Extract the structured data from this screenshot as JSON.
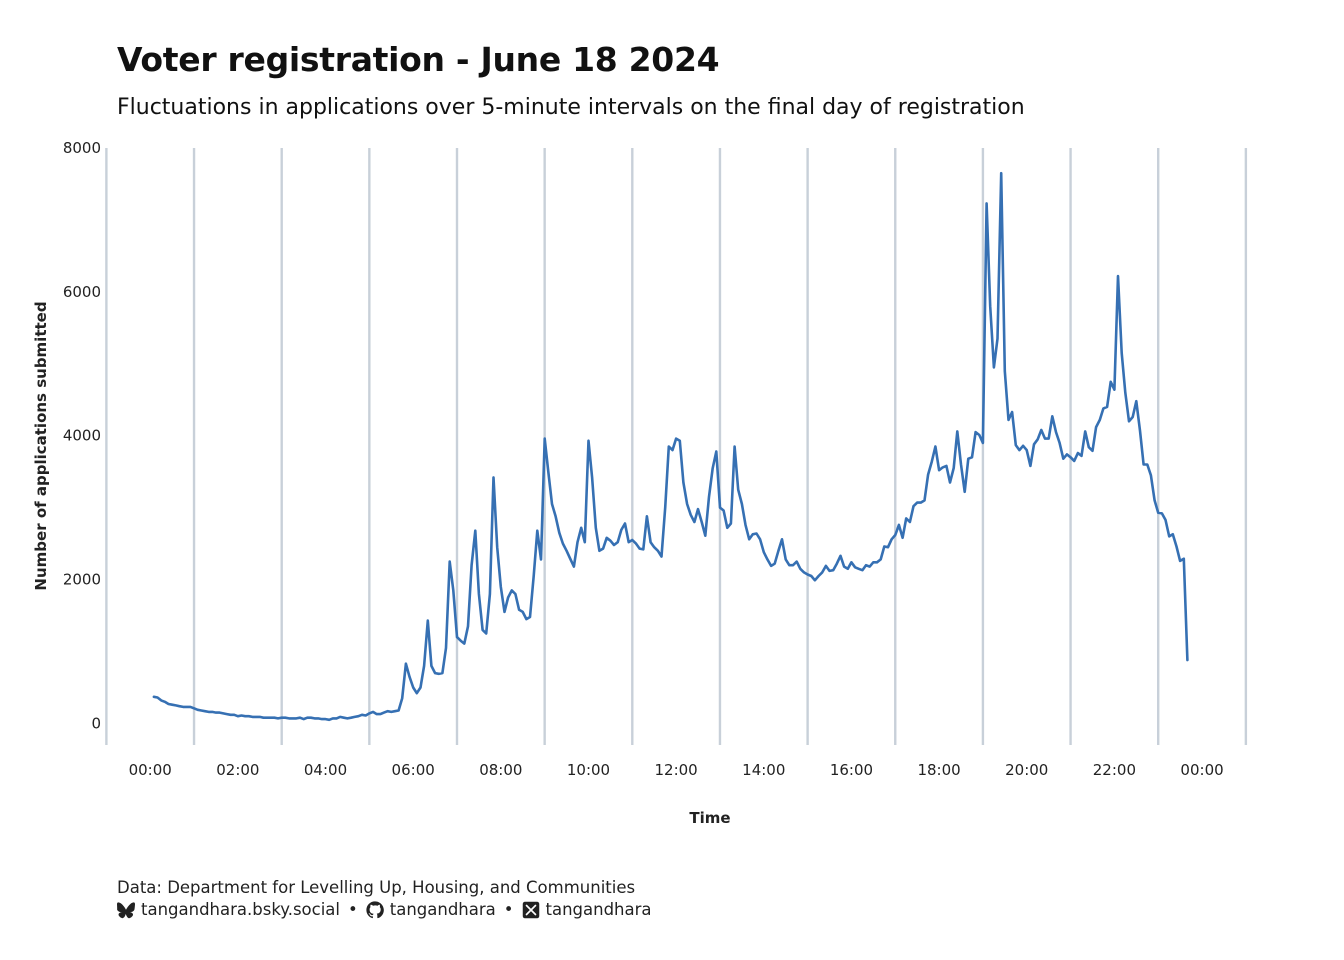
{
  "title": "Voter registration - June 18 2024",
  "subtitle": "Fluctuations in applications over 5-minute intervals on the final day of registration",
  "caption": {
    "source": "Data: Department for Levelling Up, Housing, and Communities",
    "bluesky": "tangandhara.bsky.social",
    "github": "tangandhara",
    "x": "tangandhara",
    "separator": "•"
  },
  "icons": [
    "bluesky-icon",
    "github-icon",
    "x-icon"
  ],
  "colors": {
    "line": "#3670b3",
    "gridline": "#c8d0d9"
  },
  "chart_data": {
    "type": "line",
    "xlabel": "Time",
    "ylabel": "Number of applications submitted",
    "x_unit": "minutes since 00:00 (value at 1440 = 00:00 next day)",
    "xlim": [
      -40,
      1570
    ],
    "ylim": [
      -300,
      8000
    ],
    "yticks": [
      0,
      2000,
      4000,
      6000,
      8000
    ],
    "xticks": [
      "00:00",
      "02:00",
      "04:00",
      "06:00",
      "08:00",
      "10:00",
      "12:00",
      "14:00",
      "16:00",
      "18:00",
      "20:00",
      "22:00",
      "00:00"
    ],
    "grid": "vertical lines every 2 hours at odd hours",
    "series": [
      {
        "values": [
          [
            5,
            370
          ],
          [
            10,
            360
          ],
          [
            15,
            320
          ],
          [
            20,
            300
          ],
          [
            25,
            270
          ],
          [
            30,
            260
          ],
          [
            35,
            250
          ],
          [
            40,
            240
          ],
          [
            45,
            230
          ],
          [
            50,
            230
          ],
          [
            55,
            230
          ],
          [
            60,
            210
          ],
          [
            65,
            190
          ],
          [
            70,
            180
          ],
          [
            75,
            170
          ],
          [
            80,
            160
          ],
          [
            85,
            160
          ],
          [
            90,
            150
          ],
          [
            95,
            150
          ],
          [
            100,
            140
          ],
          [
            105,
            130
          ],
          [
            110,
            120
          ],
          [
            115,
            120
          ],
          [
            120,
            100
          ],
          [
            125,
            110
          ],
          [
            130,
            100
          ],
          [
            135,
            100
          ],
          [
            140,
            90
          ],
          [
            145,
            90
          ],
          [
            150,
            90
          ],
          [
            155,
            80
          ],
          [
            160,
            80
          ],
          [
            165,
            80
          ],
          [
            170,
            80
          ],
          [
            175,
            70
          ],
          [
            180,
            80
          ],
          [
            185,
            80
          ],
          [
            190,
            70
          ],
          [
            195,
            70
          ],
          [
            200,
            70
          ],
          [
            205,
            80
          ],
          [
            210,
            60
          ],
          [
            215,
            80
          ],
          [
            220,
            80
          ],
          [
            225,
            70
          ],
          [
            230,
            70
          ],
          [
            235,
            60
          ],
          [
            240,
            60
          ],
          [
            245,
            50
          ],
          [
            250,
            70
          ],
          [
            255,
            70
          ],
          [
            260,
            90
          ],
          [
            265,
            80
          ],
          [
            270,
            70
          ],
          [
            275,
            80
          ],
          [
            280,
            90
          ],
          [
            285,
            100
          ],
          [
            290,
            120
          ],
          [
            295,
            110
          ],
          [
            300,
            140
          ],
          [
            305,
            160
          ],
          [
            310,
            130
          ],
          [
            315,
            130
          ],
          [
            320,
            150
          ],
          [
            325,
            170
          ],
          [
            330,
            160
          ],
          [
            335,
            170
          ],
          [
            340,
            180
          ],
          [
            345,
            350
          ],
          [
            350,
            830
          ],
          [
            355,
            650
          ],
          [
            360,
            500
          ],
          [
            365,
            420
          ],
          [
            370,
            500
          ],
          [
            375,
            800
          ],
          [
            380,
            1430
          ],
          [
            385,
            800
          ],
          [
            390,
            700
          ],
          [
            395,
            690
          ],
          [
            400,
            700
          ],
          [
            405,
            1050
          ],
          [
            410,
            2250
          ],
          [
            415,
            1850
          ],
          [
            420,
            1200
          ],
          [
            425,
            1150
          ],
          [
            430,
            1110
          ],
          [
            435,
            1350
          ],
          [
            440,
            2200
          ],
          [
            445,
            2680
          ],
          [
            450,
            1800
          ],
          [
            455,
            1300
          ],
          [
            460,
            1250
          ],
          [
            465,
            1800
          ],
          [
            470,
            3420
          ],
          [
            475,
            2450
          ],
          [
            480,
            1900
          ],
          [
            485,
            1550
          ],
          [
            490,
            1750
          ],
          [
            495,
            1850
          ],
          [
            500,
            1800
          ],
          [
            505,
            1580
          ],
          [
            510,
            1550
          ],
          [
            515,
            1450
          ],
          [
            520,
            1480
          ],
          [
            525,
            2050
          ],
          [
            530,
            2680
          ],
          [
            535,
            2280
          ],
          [
            540,
            3960
          ],
          [
            545,
            3500
          ],
          [
            550,
            3050
          ],
          [
            555,
            2880
          ],
          [
            560,
            2650
          ],
          [
            565,
            2500
          ],
          [
            570,
            2400
          ],
          [
            575,
            2290
          ],
          [
            580,
            2180
          ],
          [
            585,
            2520
          ],
          [
            590,
            2720
          ],
          [
            595,
            2520
          ],
          [
            600,
            3930
          ],
          [
            605,
            3420
          ],
          [
            610,
            2720
          ],
          [
            615,
            2400
          ],
          [
            620,
            2430
          ],
          [
            625,
            2580
          ],
          [
            630,
            2540
          ],
          [
            635,
            2480
          ],
          [
            640,
            2520
          ],
          [
            645,
            2690
          ],
          [
            650,
            2780
          ],
          [
            655,
            2520
          ],
          [
            660,
            2550
          ],
          [
            665,
            2500
          ],
          [
            670,
            2430
          ],
          [
            675,
            2420
          ],
          [
            680,
            2880
          ],
          [
            685,
            2520
          ],
          [
            690,
            2450
          ],
          [
            695,
            2400
          ],
          [
            700,
            2320
          ],
          [
            705,
            3000
          ],
          [
            710,
            3850
          ],
          [
            715,
            3800
          ],
          [
            720,
            3960
          ],
          [
            725,
            3930
          ],
          [
            730,
            3350
          ],
          [
            735,
            3050
          ],
          [
            740,
            2900
          ],
          [
            745,
            2800
          ],
          [
            750,
            2980
          ],
          [
            755,
            2800
          ],
          [
            760,
            2610
          ],
          [
            765,
            3150
          ],
          [
            770,
            3550
          ],
          [
            775,
            3780
          ],
          [
            780,
            3000
          ],
          [
            785,
            2960
          ],
          [
            790,
            2720
          ],
          [
            795,
            2780
          ],
          [
            800,
            3850
          ],
          [
            805,
            3250
          ],
          [
            810,
            3050
          ],
          [
            815,
            2760
          ],
          [
            820,
            2560
          ],
          [
            825,
            2630
          ],
          [
            830,
            2640
          ],
          [
            835,
            2560
          ],
          [
            840,
            2380
          ],
          [
            845,
            2280
          ],
          [
            850,
            2190
          ],
          [
            855,
            2220
          ],
          [
            860,
            2400
          ],
          [
            865,
            2560
          ],
          [
            870,
            2280
          ],
          [
            875,
            2200
          ],
          [
            880,
            2200
          ],
          [
            885,
            2250
          ],
          [
            890,
            2150
          ],
          [
            895,
            2100
          ],
          [
            900,
            2070
          ],
          [
            905,
            2050
          ],
          [
            910,
            1990
          ],
          [
            915,
            2050
          ],
          [
            920,
            2100
          ],
          [
            925,
            2190
          ],
          [
            930,
            2120
          ],
          [
            935,
            2130
          ],
          [
            940,
            2220
          ],
          [
            945,
            2330
          ],
          [
            950,
            2180
          ],
          [
            955,
            2150
          ],
          [
            960,
            2240
          ],
          [
            965,
            2170
          ],
          [
            970,
            2150
          ],
          [
            975,
            2130
          ],
          [
            980,
            2200
          ],
          [
            985,
            2180
          ],
          [
            990,
            2240
          ],
          [
            995,
            2240
          ],
          [
            1000,
            2280
          ],
          [
            1005,
            2460
          ],
          [
            1010,
            2450
          ],
          [
            1015,
            2560
          ],
          [
            1020,
            2620
          ],
          [
            1025,
            2760
          ],
          [
            1030,
            2580
          ],
          [
            1035,
            2850
          ],
          [
            1040,
            2800
          ],
          [
            1045,
            3020
          ],
          [
            1050,
            3070
          ],
          [
            1055,
            3070
          ],
          [
            1060,
            3100
          ],
          [
            1065,
            3460
          ],
          [
            1070,
            3640
          ],
          [
            1075,
            3850
          ],
          [
            1080,
            3520
          ],
          [
            1085,
            3560
          ],
          [
            1090,
            3580
          ],
          [
            1095,
            3350
          ],
          [
            1100,
            3550
          ],
          [
            1105,
            4060
          ],
          [
            1110,
            3600
          ],
          [
            1115,
            3220
          ],
          [
            1120,
            3680
          ],
          [
            1125,
            3700
          ],
          [
            1130,
            4050
          ],
          [
            1135,
            4010
          ],
          [
            1140,
            3900
          ],
          [
            1145,
            7230
          ],
          [
            1150,
            5800
          ],
          [
            1155,
            4950
          ],
          [
            1160,
            5350
          ],
          [
            1165,
            7650
          ],
          [
            1170,
            4900
          ],
          [
            1175,
            4220
          ],
          [
            1180,
            4330
          ],
          [
            1185,
            3870
          ],
          [
            1190,
            3800
          ],
          [
            1195,
            3860
          ],
          [
            1200,
            3800
          ],
          [
            1205,
            3580
          ],
          [
            1210,
            3880
          ],
          [
            1215,
            3950
          ],
          [
            1220,
            4080
          ],
          [
            1225,
            3960
          ],
          [
            1230,
            3960
          ],
          [
            1235,
            4270
          ],
          [
            1240,
            4050
          ],
          [
            1245,
            3900
          ],
          [
            1250,
            3680
          ],
          [
            1255,
            3740
          ],
          [
            1260,
            3700
          ],
          [
            1265,
            3650
          ],
          [
            1270,
            3760
          ],
          [
            1275,
            3720
          ],
          [
            1280,
            4060
          ],
          [
            1285,
            3840
          ],
          [
            1290,
            3790
          ],
          [
            1295,
            4120
          ],
          [
            1300,
            4220
          ],
          [
            1305,
            4380
          ],
          [
            1310,
            4400
          ],
          [
            1315,
            4750
          ],
          [
            1320,
            4640
          ],
          [
            1325,
            6220
          ],
          [
            1330,
            5150
          ],
          [
            1335,
            4600
          ],
          [
            1340,
            4200
          ],
          [
            1345,
            4260
          ],
          [
            1350,
            4480
          ],
          [
            1355,
            4070
          ],
          [
            1360,
            3600
          ],
          [
            1365,
            3600
          ],
          [
            1370,
            3450
          ],
          [
            1375,
            3100
          ],
          [
            1380,
            2930
          ],
          [
            1385,
            2920
          ],
          [
            1390,
            2830
          ],
          [
            1395,
            2600
          ],
          [
            1400,
            2630
          ],
          [
            1405,
            2460
          ],
          [
            1410,
            2260
          ],
          [
            1415,
            2290
          ],
          [
            1420,
            880
          ]
        ]
      }
    ]
  }
}
